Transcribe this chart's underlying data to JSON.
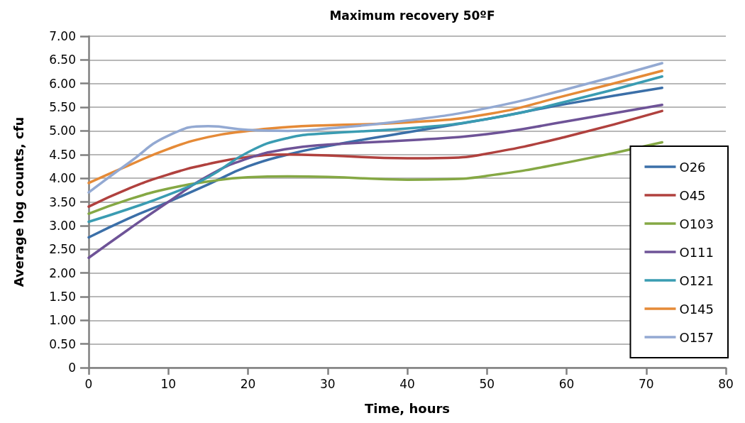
{
  "chart_data": {
    "type": "line",
    "title": "Maximum recovery 50ºF",
    "xlabel": "Time, hours",
    "ylabel": "Average log counts, cfu",
    "xlim": [
      0,
      80
    ],
    "xticks": [
      0,
      10,
      20,
      30,
      40,
      50,
      60,
      70,
      80
    ],
    "ylim": [
      0,
      7
    ],
    "yticks": [
      0,
      {
        "value": 0.5,
        "label": "0.50"
      },
      {
        "value": 1,
        "label": "1.00"
      },
      {
        "value": 1.5,
        "label": "1.50"
      },
      {
        "value": 2,
        "label": "2.00"
      },
      {
        "value": 2.5,
        "label": "2.50"
      },
      {
        "value": 3,
        "label": "3.00"
      },
      {
        "value": 3.5,
        "label": "3.50"
      },
      {
        "value": 4,
        "label": "4.00"
      },
      {
        "value": 4.5,
        "label": "4.50"
      },
      {
        "value": 5,
        "label": "5.00"
      },
      {
        "value": 5.5,
        "label": "5.50"
      },
      {
        "value": 6,
        "label": "6.00"
      },
      {
        "value": 6.5,
        "label": "6.50"
      },
      {
        "value": 7,
        "label": "7.00"
      }
    ],
    "grid": "y",
    "legend": "bottom right",
    "marker": "none",
    "line_style": "solid",
    "series": [
      {
        "name": "O26",
        "color": "#3b6fa8",
        "x": [
          0,
          5,
          10,
          15,
          20,
          25,
          30,
          40,
          50,
          60,
          72
        ],
        "values": [
          2.75,
          3.15,
          3.5,
          3.87,
          4.25,
          4.5,
          4.68,
          4.97,
          5.25,
          5.57,
          5.91
        ]
      },
      {
        "name": "O45",
        "color": "#b0413e",
        "x": [
          0,
          5,
          10,
          15,
          20,
          25,
          30,
          40,
          45,
          50,
          60,
          72
        ],
        "values": [
          3.4,
          3.78,
          4.08,
          4.3,
          4.45,
          4.5,
          4.48,
          4.42,
          4.43,
          4.52,
          4.88,
          5.42
        ]
      },
      {
        "name": "O103",
        "color": "#85a844",
        "x": [
          0,
          5,
          10,
          15,
          20,
          25,
          30,
          40,
          45,
          50,
          60,
          72
        ],
        "values": [
          3.25,
          3.55,
          3.78,
          3.93,
          4.02,
          4.04,
          4.03,
          3.97,
          3.98,
          4.05,
          4.33,
          4.76
        ]
      },
      {
        "name": "O111",
        "color": "#6e5397",
        "x": [
          0,
          5,
          10,
          15,
          20,
          25,
          30,
          40,
          50,
          60,
          72
        ],
        "values": [
          2.32,
          2.92,
          3.5,
          4.05,
          4.42,
          4.62,
          4.71,
          4.8,
          4.93,
          5.2,
          5.55
        ]
      },
      {
        "name": "O121",
        "color": "#3a9cb2",
        "x": [
          0,
          5,
          10,
          15,
          20,
          25,
          30,
          40,
          50,
          60,
          72
        ],
        "values": [
          3.08,
          3.35,
          3.65,
          4.02,
          4.55,
          4.85,
          4.95,
          5.05,
          5.25,
          5.62,
          6.15
        ]
      },
      {
        "name": "O145",
        "color": "#e58a37",
        "x": [
          0,
          5,
          10,
          15,
          20,
          25,
          30,
          40,
          50,
          60,
          72
        ],
        "values": [
          3.9,
          4.27,
          4.62,
          4.87,
          5.0,
          5.08,
          5.12,
          5.18,
          5.35,
          5.75,
          6.27
        ]
      },
      {
        "name": "O157",
        "color": "#93a9d2",
        "x": [
          0,
          5,
          10,
          15,
          20,
          25,
          30,
          40,
          50,
          60,
          72
        ],
        "values": [
          3.7,
          4.32,
          4.9,
          5.1,
          5.02,
          5.0,
          5.05,
          5.22,
          5.48,
          5.88,
          6.43
        ]
      }
    ]
  }
}
